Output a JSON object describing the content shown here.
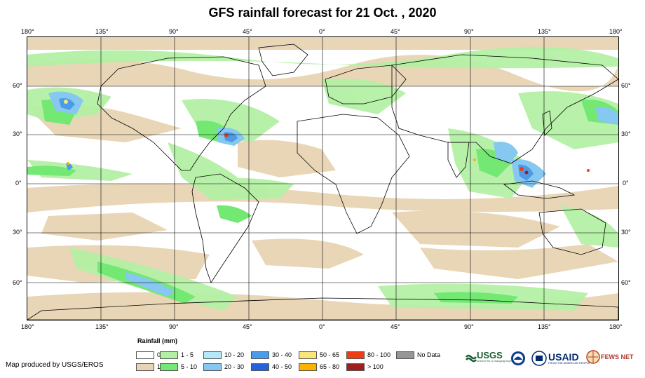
{
  "title": "GFS rainfall forecast for 21 Oct. , 2020",
  "axes": {
    "lon_labels": [
      "180°",
      "135°",
      "90°",
      "45°",
      "0°",
      "45°",
      "90°",
      "135°",
      "180°"
    ],
    "lat_labels": [
      "60°",
      "30°",
      "0°",
      "30°",
      "60°"
    ]
  },
  "legend": {
    "title": "Rainfall (mm)",
    "items": [
      {
        "label": "0",
        "color": "#ffffff"
      },
      {
        "label": "1",
        "color": "#e8d4b4"
      },
      {
        "label": "1 - 5",
        "color": "#b4f0a4"
      },
      {
        "label": "5 - 10",
        "color": "#73e873"
      },
      {
        "label": "10 - 20",
        "color": "#b4eaf8"
      },
      {
        "label": "20 - 30",
        "color": "#87c8f0"
      },
      {
        "label": "30 - 40",
        "color": "#4b9be8"
      },
      {
        "label": "40 - 50",
        "color": "#2663d8"
      },
      {
        "label": "50 - 65",
        "color": "#fae678"
      },
      {
        "label": "65 - 80",
        "color": "#fab400"
      },
      {
        "label": "80 - 100",
        "color": "#f03c14"
      },
      {
        "label": "> 100",
        "color": "#a01e1e"
      },
      {
        "label": "No Data",
        "color": "#969696"
      }
    ]
  },
  "credit": "Map produced by USGS/EROS",
  "logos": {
    "usgs": "USGS",
    "usgs_tagline": "science for a changing world",
    "usaid": "USAID",
    "usaid_tagline": "FROM THE AMERICAN PEOPLE",
    "fewsnet": "FEWS NET"
  }
}
